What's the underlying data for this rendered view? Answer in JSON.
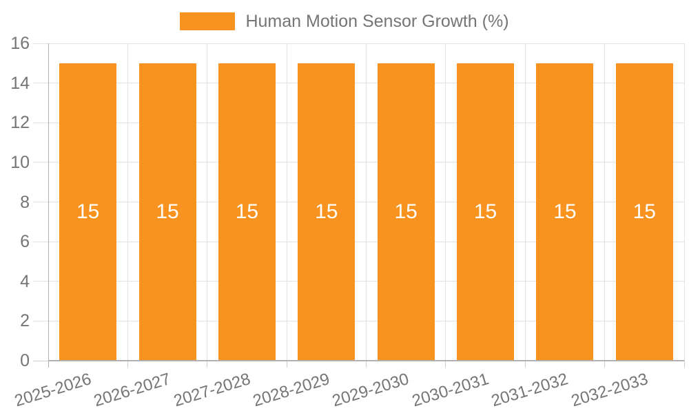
{
  "chart_data": {
    "type": "bar",
    "title": "Human Motion Sensor Growth (%)",
    "legend": [
      "Human Motion Sensor Growth (%)"
    ],
    "legend_position": "top-center",
    "categories": [
      "2025-2026",
      "2026-2027",
      "2027-2028",
      "2028-2029",
      "2029-2030",
      "2030-2031",
      "2031-2032",
      "2032-2033"
    ],
    "values": [
      15,
      15,
      15,
      15,
      15,
      15,
      15,
      15
    ],
    "bar_value_labels": [
      "15",
      "15",
      "15",
      "15",
      "15",
      "15",
      "15",
      "15"
    ],
    "xlabel": "",
    "ylabel": "",
    "ylim": [
      0,
      16
    ],
    "yticks": [
      0,
      2,
      4,
      6,
      8,
      10,
      12,
      14,
      16
    ],
    "grid": true,
    "x_label_rotation_deg": -17,
    "colors": {
      "bar": "#f7931e",
      "value_label": "#ffffff",
      "axis_text": "#757575",
      "axis_line": "#b0b0b0",
      "gridline": "#e2e2e2",
      "tick": "#cccccc",
      "background": "#ffffff"
    }
  }
}
